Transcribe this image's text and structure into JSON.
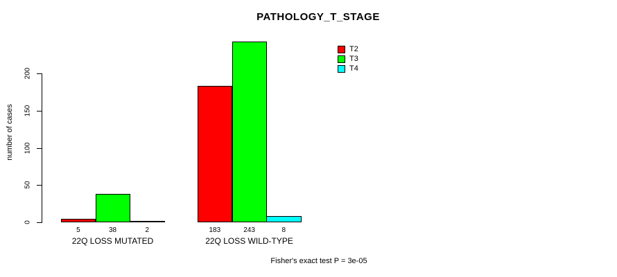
{
  "chart_data": {
    "type": "bar",
    "title": "PATHOLOGY_T_STAGE",
    "xlabel": "",
    "ylabel": "number of cases",
    "categories": [
      "22Q LOSS MUTATED",
      "22Q LOSS WILD-TYPE"
    ],
    "series": [
      {
        "name": "T2",
        "color": "#ff0000",
        "values": [
          5,
          183
        ]
      },
      {
        "name": "T3",
        "color": "#00ff00",
        "values": [
          38,
          243
        ]
      },
      {
        "name": "T4",
        "color": "#00ffff",
        "values": [
          2,
          8
        ]
      }
    ],
    "bar_value_labels": [
      [
        "5",
        "38",
        "2"
      ],
      [
        "183",
        "243",
        "8"
      ]
    ],
    "yticks": [
      "0",
      "50",
      "100",
      "150",
      "200"
    ],
    "ytick_values": [
      0,
      50,
      100,
      150,
      200
    ],
    "ylim": [
      0,
      243
    ],
    "grid": false,
    "legend": {
      "position": "top-right",
      "entries": [
        "T2",
        "T3",
        "T4"
      ]
    },
    "annotation": "Fisher's exact test P = 3e-05",
    "colors": {
      "background": "#ffffff",
      "axis": "#000000",
      "text": "#000000"
    }
  }
}
